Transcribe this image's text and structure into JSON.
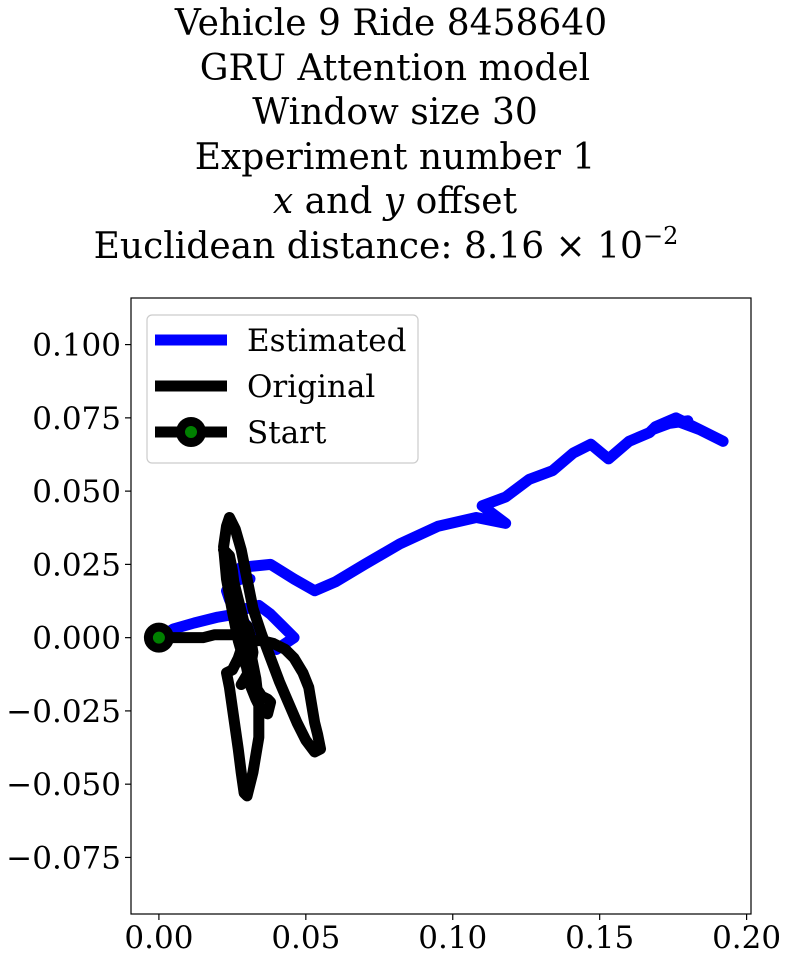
{
  "title_lines": {
    "line1": "Vehicle 9 Ride 8458640",
    "line2": "GRU Attention model",
    "line3": "Window size 30",
    "line4": "Experiment number 1",
    "line5_x": "x",
    "line5_and": " and ",
    "line5_y": "y",
    "line5_rest": " offset",
    "line6_prefix": "Euclidean distance: ",
    "line6_mantissa": "8.16",
    "line6_times": " × 10",
    "line6_exp": "−2"
  },
  "chart_data": {
    "type": "line",
    "xlim": [
      -0.0095,
      0.2015
    ],
    "ylim": [
      -0.0943,
      0.1159
    ],
    "xticks": [
      0.0,
      0.05,
      0.1,
      0.15,
      0.2
    ],
    "xtick_labels": [
      "0.00",
      "0.05",
      "0.10",
      "0.15",
      "0.20"
    ],
    "yticks": [
      0.1,
      0.075,
      0.05,
      0.025,
      0.0,
      -0.025,
      -0.05,
      -0.075
    ],
    "ytick_labels": [
      "0.100",
      "0.075",
      "0.050",
      "0.025",
      "0.000",
      "−0.025",
      "−0.050",
      "−0.075"
    ],
    "grid": false,
    "legend_position": "top-left",
    "colors": {
      "estimated": "#0000ff",
      "original": "#000000",
      "start_marker_fill": "#008000",
      "start_marker_edge": "#000000"
    },
    "series": [
      {
        "name": "Estimated",
        "x": [
          0.0,
          0.005,
          0.012,
          0.02,
          0.026,
          0.03,
          0.034,
          0.038,
          0.042,
          0.046,
          0.04,
          0.035,
          0.03,
          0.026,
          0.024,
          0.023,
          0.025,
          0.028,
          0.031,
          0.028,
          0.025,
          0.028,
          0.038,
          0.046,
          0.053,
          0.06,
          0.07,
          0.082,
          0.095,
          0.108,
          0.118,
          0.11,
          0.118,
          0.126,
          0.134,
          0.141,
          0.147,
          0.153,
          0.16,
          0.167,
          0.169,
          0.176,
          0.184,
          0.192,
          0.184,
          0.176,
          0.168,
          0.173,
          0.18
        ],
        "y": [
          0.0,
          0.003,
          0.005,
          0.007,
          0.008,
          0.01,
          0.011,
          0.008,
          0.004,
          0.0,
          -0.004,
          -0.001,
          0.004,
          0.009,
          0.013,
          0.016,
          0.019,
          0.02,
          0.02,
          0.021,
          0.022,
          0.024,
          0.025,
          0.02,
          0.016,
          0.019,
          0.025,
          0.032,
          0.038,
          0.041,
          0.039,
          0.045,
          0.048,
          0.054,
          0.057,
          0.063,
          0.066,
          0.061,
          0.067,
          0.07,
          0.072,
          0.075,
          0.071,
          0.067,
          0.071,
          0.074,
          0.071,
          0.073,
          0.074
        ]
      },
      {
        "name": "Original",
        "x": [
          0.0,
          0.005,
          0.01,
          0.015,
          0.019,
          0.023,
          0.026,
          0.029,
          0.032,
          0.035,
          0.039,
          0.043,
          0.046,
          0.049,
          0.051,
          0.052,
          0.053,
          0.054,
          0.055,
          0.053,
          0.05,
          0.047,
          0.044,
          0.041,
          0.038,
          0.035,
          0.032,
          0.03,
          0.028,
          0.026,
          0.024,
          0.023,
          0.022,
          0.023,
          0.025,
          0.027,
          0.029,
          0.031,
          0.033,
          0.035,
          0.037,
          0.038,
          0.037,
          0.035,
          0.033,
          0.031,
          0.03,
          0.029,
          0.028,
          0.027,
          0.026,
          0.025,
          0.024,
          0.022,
          0.023,
          0.025,
          0.027,
          0.029,
          0.031,
          0.033,
          0.034,
          0.034,
          0.032,
          0.03,
          0.029,
          0.028,
          0.027,
          0.026,
          0.025,
          0.024,
          0.023,
          0.025,
          0.027,
          0.029,
          0.03,
          0.031,
          0.032,
          0.031,
          0.028
        ],
        "y": [
          0.0,
          0.0,
          0.0,
          0.0,
          0.001,
          0.001,
          0.001,
          0.0,
          -0.001,
          -0.001,
          -0.002,
          -0.004,
          -0.007,
          -0.012,
          -0.017,
          -0.023,
          -0.029,
          -0.033,
          -0.038,
          -0.039,
          -0.035,
          -0.029,
          -0.022,
          -0.015,
          -0.007,
          0.001,
          0.01,
          0.02,
          0.03,
          0.037,
          0.041,
          0.038,
          0.031,
          0.02,
          0.009,
          -0.001,
          -0.008,
          -0.013,
          -0.017,
          -0.02,
          -0.021,
          -0.022,
          -0.026,
          -0.025,
          -0.021,
          -0.016,
          -0.011,
          -0.006,
          0.0,
          0.007,
          0.015,
          0.023,
          0.028,
          0.03,
          0.028,
          0.021,
          0.013,
          0.005,
          -0.004,
          -0.014,
          -0.023,
          -0.034,
          -0.046,
          -0.054,
          -0.053,
          -0.046,
          -0.038,
          -0.031,
          -0.024,
          -0.017,
          -0.012,
          -0.011,
          -0.007,
          -0.001,
          0.004,
          0.001,
          -0.005,
          -0.011,
          -0.016
        ]
      }
    ],
    "start_point": {
      "name": "Start",
      "x": 0.0,
      "y": 0.0
    }
  }
}
